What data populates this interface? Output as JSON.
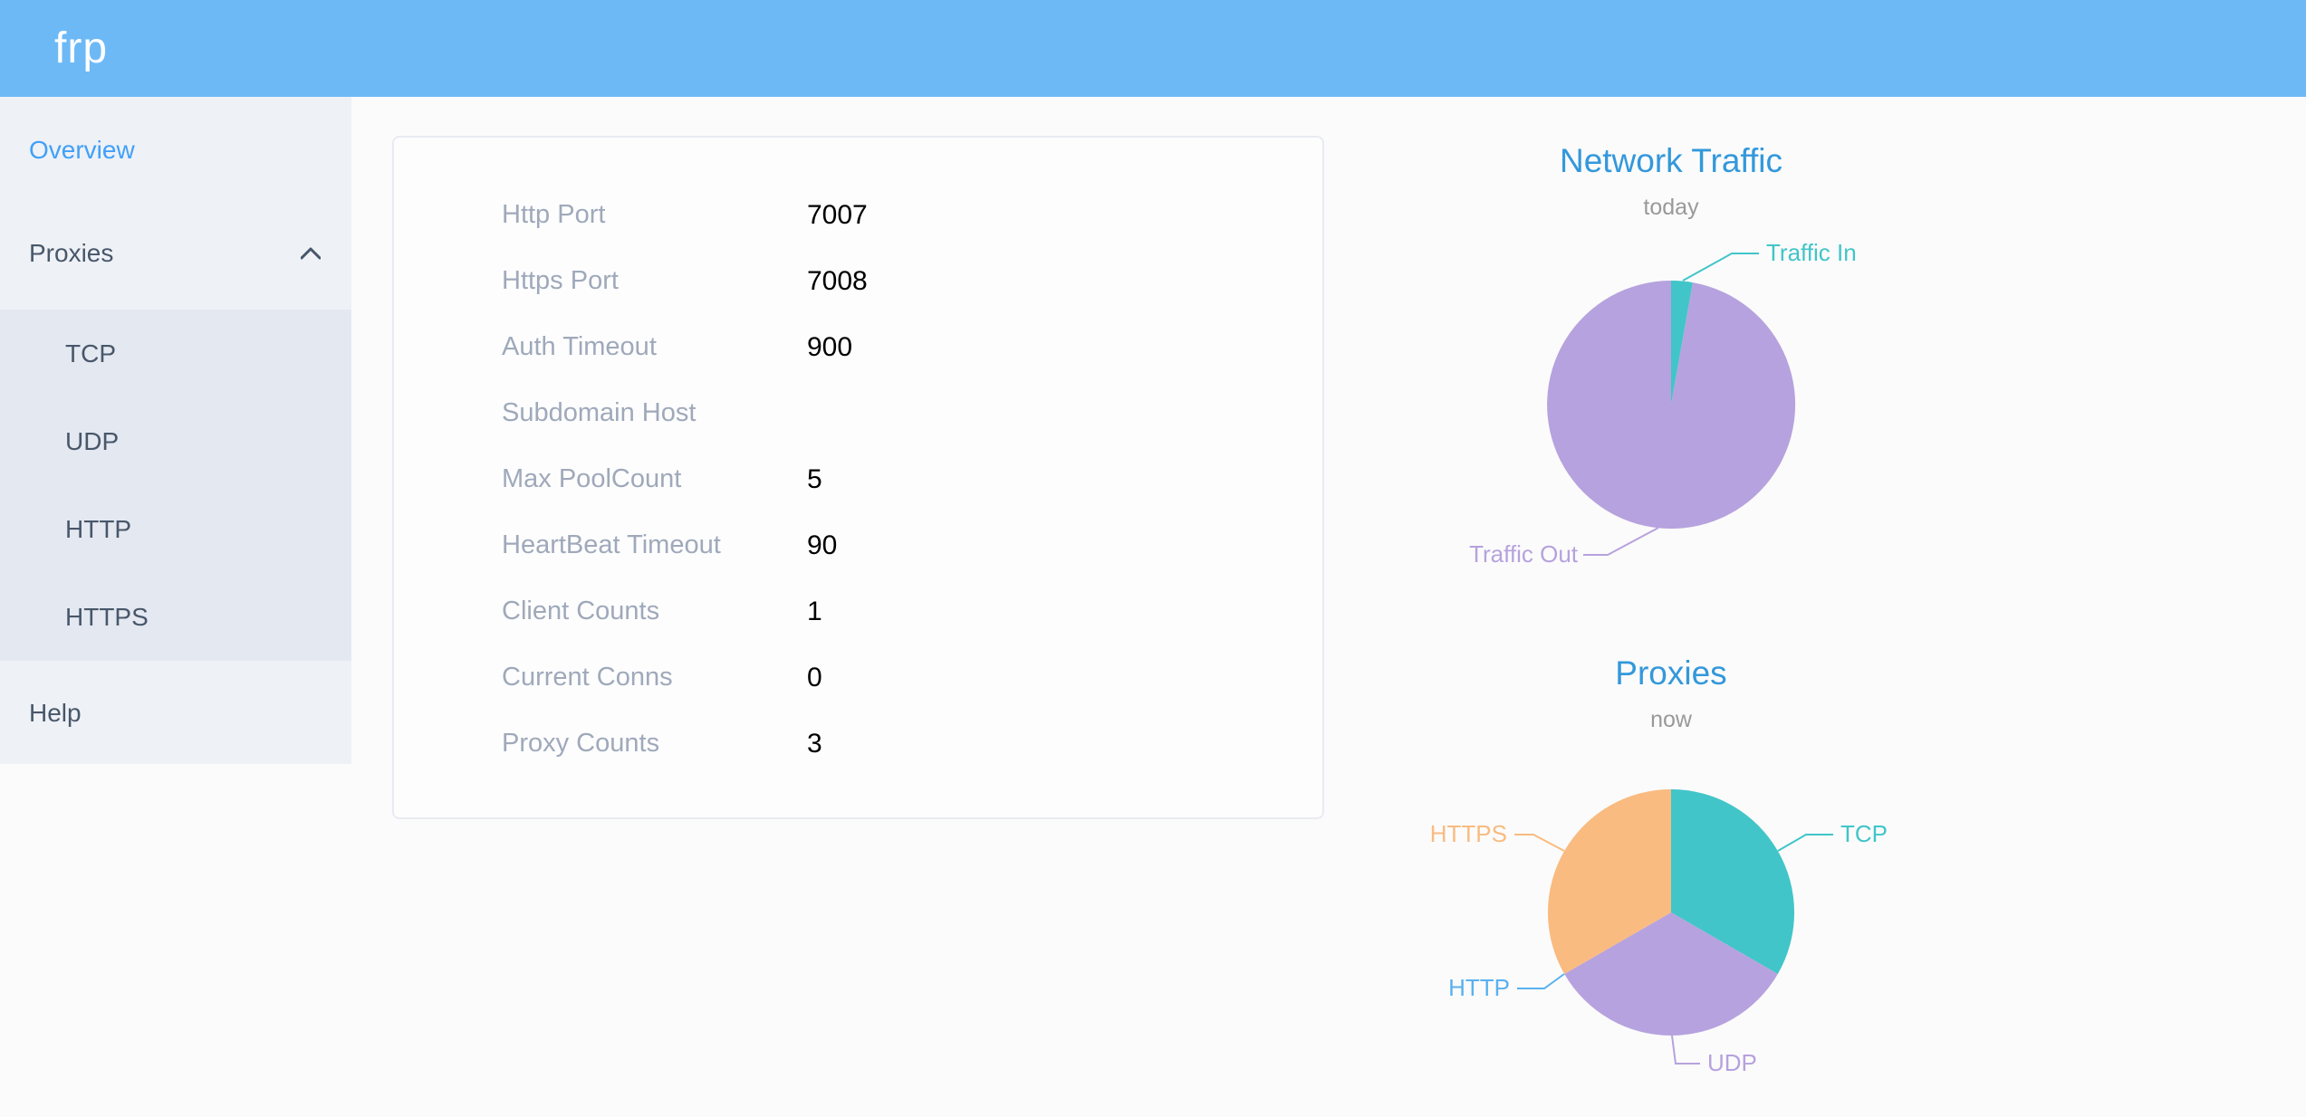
{
  "header": {
    "logo_text": "frp",
    "bg_color": "#6db9f6"
  },
  "sidebar": {
    "active_color": "#41a0f8",
    "items": [
      {
        "label": "Overview",
        "active": true
      },
      {
        "label": "Proxies",
        "expanded": true,
        "children": [
          {
            "label": "TCP"
          },
          {
            "label": "UDP"
          },
          {
            "label": "HTTP"
          },
          {
            "label": "HTTPS"
          }
        ]
      },
      {
        "label": "Help"
      }
    ]
  },
  "server_info": {
    "rows": [
      {
        "label": "Http Port",
        "value": "7007"
      },
      {
        "label": "Https Port",
        "value": "7008"
      },
      {
        "label": "Auth Timeout",
        "value": "900"
      },
      {
        "label": "Subdomain Host",
        "value": ""
      },
      {
        "label": "Max PoolCount",
        "value": "5"
      },
      {
        "label": "HeartBeat Timeout",
        "value": "90"
      },
      {
        "label": "Client Counts",
        "value": "1"
      },
      {
        "label": "Current Conns",
        "value": "0"
      },
      {
        "label": "Proxy Counts",
        "value": "3"
      }
    ]
  },
  "chart_data": [
    {
      "type": "pie",
      "title": "Network Traffic",
      "subtitle": "today",
      "units": "percent",
      "legend_position": "none",
      "labels": "outside",
      "series": [
        {
          "name": "Traffic In",
          "value": 2.8,
          "color": "#41c5c9"
        },
        {
          "name": "Traffic Out",
          "value": 97.2,
          "color": "#b6a2de"
        }
      ]
    },
    {
      "type": "pie",
      "title": "Proxies",
      "subtitle": "now",
      "units": "count",
      "legend_position": "none",
      "labels": "outside",
      "series": [
        {
          "name": "TCP",
          "value": 1,
          "color": "#41c5c9"
        },
        {
          "name": "UDP",
          "value": 1,
          "color": "#b6a2de"
        },
        {
          "name": "HTTP",
          "value": 0,
          "color": "#5ab1ef"
        },
        {
          "name": "HTTPS",
          "value": 1,
          "color": "#f9bb80"
        }
      ]
    }
  ],
  "chart_style": {
    "title_color": "#3398db",
    "subtitle_color": "#999999"
  }
}
